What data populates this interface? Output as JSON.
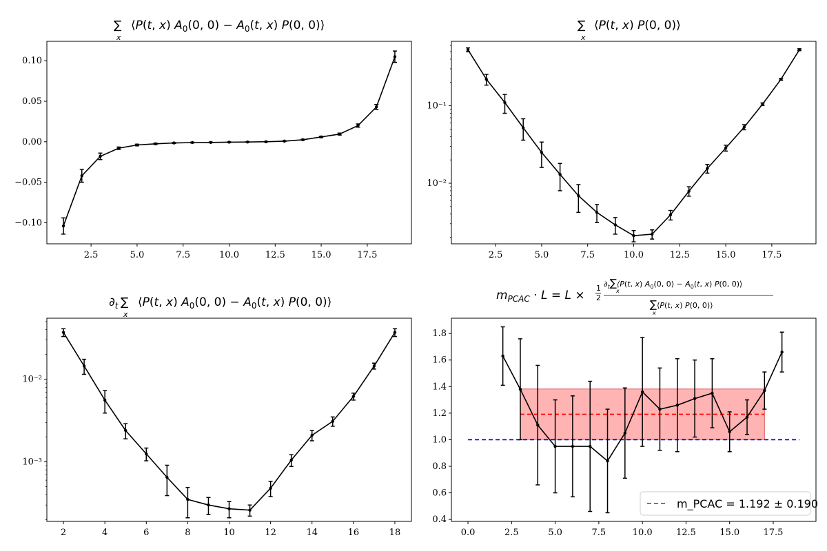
{
  "chart_data": [
    {
      "id": "p1",
      "type": "line",
      "title": "∑ₓ⟨P(t, x) A₀(0, 0) − A₀(t, x) P(0, 0)⟩",
      "xlim": [
        0.1,
        19.9
      ],
      "ylim": [
        -0.126,
        0.124
      ],
      "yscale": "linear",
      "xticks": [
        2.5,
        5.0,
        7.5,
        10.0,
        12.5,
        15.0,
        17.5
      ],
      "xtick_labels": [
        "2.5",
        "5.0",
        "7.5",
        "10.0",
        "12.5",
        "15.0",
        "17.5"
      ],
      "yticks": [
        -0.1,
        -0.05,
        0.0,
        0.05,
        0.1
      ],
      "ytick_labels": [
        "−0.10",
        "−0.05",
        "0.00",
        "0.05",
        "0.10"
      ],
      "x": [
        1,
        2,
        3,
        4,
        5,
        6,
        7,
        8,
        9,
        10,
        11,
        12,
        13,
        14,
        15,
        16,
        17,
        18,
        19
      ],
      "y": [
        -0.104,
        -0.042,
        -0.018,
        -0.008,
        -0.004,
        -0.0025,
        -0.0015,
        -0.001,
        -0.0008,
        -0.0005,
        -0.0003,
        0.0,
        0.0008,
        0.0025,
        0.006,
        0.0095,
        0.02,
        0.043,
        0.105
      ],
      "yerr": [
        0.01,
        0.008,
        0.004,
        0.0015,
        0.001,
        0.0008,
        0.0005,
        0.0005,
        0.0004,
        0.0004,
        0.0003,
        0.0003,
        0.0004,
        0.0006,
        0.0008,
        0.0012,
        0.002,
        0.003,
        0.007
      ],
      "color": "#000000"
    },
    {
      "id": "p2",
      "type": "line",
      "title": "∑ₓ⟨P(t, x) P(0, 0)⟩",
      "xlim": [
        0.1,
        19.9
      ],
      "ylim": [
        0.00165,
        0.68
      ],
      "yscale": "log",
      "xticks": [
        2.5,
        5.0,
        7.5,
        10.0,
        12.5,
        15.0,
        17.5
      ],
      "xtick_labels": [
        "2.5",
        "5.0",
        "7.5",
        "10.0",
        "12.5",
        "15.0",
        "17.5"
      ],
      "yticks": [
        0.1,
        0.01
      ],
      "ytick_labels": [
        "10⁻¹",
        "10⁻²"
      ],
      "x": [
        1,
        2,
        3,
        4,
        5,
        6,
        7,
        8,
        9,
        10,
        11,
        12,
        13,
        14,
        15,
        16,
        17,
        18,
        19
      ],
      "y": [
        0.53,
        0.22,
        0.11,
        0.052,
        0.025,
        0.013,
        0.0069,
        0.0042,
        0.0029,
        0.0021,
        0.0022,
        0.0039,
        0.0079,
        0.0155,
        0.0285,
        0.053,
        0.105,
        0.22,
        0.53
      ],
      "yerr_lo": [
        0.03,
        0.035,
        0.03,
        0.016,
        0.009,
        0.005,
        0.0027,
        0.0011,
        0.0007,
        0.00035,
        0.0003,
        0.00055,
        0.0011,
        0.002,
        0.0025,
        0.004,
        0.004,
        0.006,
        0.015
      ],
      "yerr_hi": [
        0.03,
        0.035,
        0.03,
        0.016,
        0.009,
        0.005,
        0.0027,
        0.0011,
        0.0007,
        0.00035,
        0.0003,
        0.00055,
        0.0011,
        0.002,
        0.0025,
        0.004,
        0.004,
        0.006,
        0.015
      ],
      "color": "#000000"
    },
    {
      "id": "p3",
      "type": "line",
      "title": "∂ₜ∑ₓ⟨P(t, x) A₀(0, 0) − A₀(t, x) P(0, 0)⟩",
      "xlim": [
        1.2,
        18.8
      ],
      "ylim": [
        0.00019,
        0.055
      ],
      "yscale": "log",
      "xticks": [
        2,
        4,
        6,
        8,
        10,
        12,
        14,
        16,
        18
      ],
      "xtick_labels": [
        "2",
        "4",
        "6",
        "8",
        "10",
        "12",
        "14",
        "16",
        "18"
      ],
      "yticks": [
        0.01,
        0.001
      ],
      "ytick_labels": [
        "10⁻²",
        "10⁻³"
      ],
      "x": [
        2,
        3,
        4,
        5,
        6,
        7,
        8,
        9,
        10,
        11,
        12,
        13,
        14,
        15,
        16,
        17,
        18
      ],
      "y": [
        0.037,
        0.0145,
        0.0056,
        0.0024,
        0.00125,
        0.00065,
        0.00035,
        0.0003,
        0.00027,
        0.00026,
        0.00048,
        0.00105,
        0.0021,
        0.0031,
        0.0062,
        0.0145,
        0.037
      ],
      "yerr": [
        0.004,
        0.003,
        0.0017,
        0.0005,
        0.00022,
        0.00026,
        0.00014,
        7e-05,
        6e-05,
        4e-05,
        0.0001,
        0.00017,
        0.0003,
        0.0004,
        0.0006,
        0.0012,
        0.004
      ],
      "color": "#000000"
    },
    {
      "id": "p4",
      "type": "line",
      "title": "m_PCAC · L = L × ½ ∂ₜ∑ₓ⟨P(t, x) A₀(0, 0) − A₀(t, x) P(0, 0)⟩ / ∑ₓ⟨P(t, x) P(0, 0)⟩",
      "xlim": [
        -0.95,
        19.95
      ],
      "ylim": [
        0.385,
        1.915
      ],
      "yscale": "linear",
      "xticks": [
        0.0,
        2.5,
        5.0,
        7.5,
        10.0,
        12.5,
        15.0,
        17.5
      ],
      "xtick_labels": [
        "0.0",
        "2.5",
        "5.0",
        "7.5",
        "10.0",
        "12.5",
        "15.0",
        "17.5"
      ],
      "yticks": [
        0.4,
        0.6,
        0.8,
        1.0,
        1.2,
        1.4,
        1.6,
        1.8
      ],
      "ytick_labels": [
        "0.4",
        "0.6",
        "0.8",
        "1.0",
        "1.2",
        "1.4",
        "1.6",
        "1.8"
      ],
      "x": [
        2,
        3,
        4,
        5,
        6,
        7,
        8,
        9,
        10,
        11,
        12,
        13,
        14,
        15,
        16,
        17,
        18
      ],
      "y": [
        1.63,
        1.38,
        1.11,
        0.95,
        0.95,
        0.95,
        0.84,
        1.05,
        1.36,
        1.23,
        1.26,
        1.31,
        1.35,
        1.06,
        1.17,
        1.37,
        1.66
      ],
      "yerr": [
        0.22,
        0.38,
        0.45,
        0.35,
        0.38,
        0.49,
        0.39,
        0.34,
        0.41,
        0.31,
        0.35,
        0.29,
        0.26,
        0.15,
        0.13,
        0.14,
        0.15
      ],
      "color": "#000000",
      "fit": {
        "value": 1.192,
        "error": 0.19,
        "x_range": [
          3,
          17
        ],
        "color": "#ff0000",
        "band_color": "#ff8080"
      },
      "reference": {
        "value": 1.0,
        "x_range": [
          0,
          19
        ],
        "color": "#0000cc"
      },
      "legend": {
        "label": "m_PCAC = 1.192 ± 0.190",
        "position": "lower-right"
      }
    }
  ]
}
